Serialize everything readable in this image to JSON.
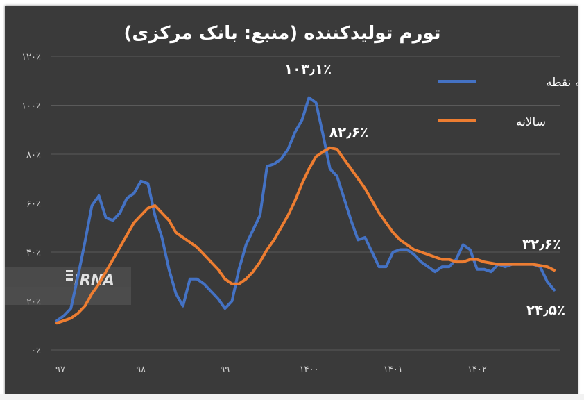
{
  "chart_data": {
    "type": "line",
    "title": "تورم تولیدکننده (منبع: بانک مرکزی)",
    "xlabel": "",
    "ylabel": "",
    "ylim": [
      0,
      120
    ],
    "y_ticks": [
      "۰٪",
      "۲۰٪",
      "۴۰٪",
      "۶۰٪",
      "۸۰٪",
      "۱۰۰٪",
      "۱۲۰٪"
    ],
    "x_ticks": [
      "۹۷",
      "۹۸",
      "۹۹",
      "۱۴۰۰",
      "۱۴۰۱",
      "۱۴۰۲"
    ],
    "x_tick_positions": [
      0,
      12,
      24,
      36,
      48,
      60
    ],
    "xlim": [
      0,
      71
    ],
    "grid": true,
    "legend_position": "top-right",
    "series": [
      {
        "name": "نقطه به نقطه",
        "color": "#4472c4",
        "x": [
          0,
          1,
          2,
          3,
          4,
          5,
          6,
          7,
          8,
          9,
          10,
          11,
          12,
          13,
          14,
          15,
          16,
          17,
          18,
          19,
          20,
          21,
          22,
          23,
          24,
          25,
          26,
          27,
          28,
          29,
          30,
          31,
          32,
          33,
          34,
          35,
          36,
          37,
          38,
          39,
          40,
          41,
          42,
          43,
          44,
          45,
          46,
          47,
          48,
          49,
          50,
          51,
          52,
          53,
          54,
          55,
          56,
          57,
          58,
          59,
          60,
          61,
          62,
          63,
          64,
          65,
          66,
          67,
          68,
          69,
          70,
          71
        ],
        "values": [
          12,
          14,
          17,
          30,
          44,
          59,
          63,
          54,
          53,
          56,
          62,
          64,
          69,
          68,
          55,
          46,
          33,
          23,
          18,
          29,
          29,
          27,
          24,
          21,
          17,
          20,
          33,
          43,
          49,
          55,
          75,
          76,
          78,
          82,
          89,
          94,
          103.1,
          101,
          88,
          74,
          71,
          62,
          53,
          45,
          46,
          40,
          34,
          34,
          40,
          41,
          41,
          39,
          36,
          34,
          32,
          34,
          34,
          37,
          43,
          41,
          33,
          33,
          32,
          35,
          34,
          35,
          35,
          35,
          35,
          34,
          28,
          24.5
        ]
      },
      {
        "name": "سالانه",
        "color": "#ed7d31",
        "x": [
          0,
          1,
          2,
          3,
          4,
          5,
          6,
          7,
          8,
          9,
          10,
          11,
          12,
          13,
          14,
          15,
          16,
          17,
          18,
          19,
          20,
          21,
          22,
          23,
          24,
          25,
          26,
          27,
          28,
          29,
          30,
          31,
          32,
          33,
          34,
          35,
          36,
          37,
          38,
          39,
          40,
          41,
          42,
          43,
          44,
          45,
          46,
          47,
          48,
          49,
          50,
          51,
          52,
          53,
          54,
          55,
          56,
          57,
          58,
          59,
          60,
          61,
          62,
          63,
          64,
          65,
          66,
          67,
          68,
          69,
          70,
          71
        ],
        "values": [
          11,
          12,
          13,
          15,
          18,
          23,
          27,
          32,
          37,
          42,
          47,
          52,
          55,
          58,
          59,
          56,
          53,
          48,
          46,
          44,
          42,
          39,
          36,
          33,
          29,
          27,
          27,
          29,
          32,
          36,
          41,
          45,
          50,
          55,
          61,
          68,
          74,
          79,
          81,
          82.6,
          82,
          78,
          74,
          70,
          66,
          61,
          56,
          52,
          48,
          45,
          43,
          41,
          40,
          39,
          38,
          37,
          37,
          36,
          36,
          37,
          37,
          36,
          35.5,
          35,
          35,
          35,
          35,
          35,
          35,
          34.5,
          34,
          32.6
        ]
      }
    ],
    "annotations": [
      "۱۰۳٫۱٪",
      "۸۲٫۶٪",
      "۳۲٫۶٪",
      "۲۴٫۵٪"
    ],
    "colors": {
      "background": "#3a3a3a",
      "grid": "#5a5a5a",
      "text": "#ffffff",
      "axis_labels": "#d0d0d0"
    }
  },
  "watermark": {
    "text": "IRNA"
  }
}
